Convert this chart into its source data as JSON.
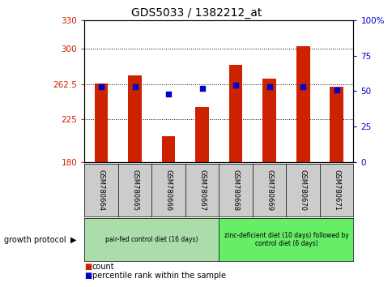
{
  "title": "GDS5033 / 1382212_at",
  "samples": [
    "GSM780664",
    "GSM780665",
    "GSM780666",
    "GSM780667",
    "GSM780668",
    "GSM780669",
    "GSM780670",
    "GSM780671"
  ],
  "counts": [
    263,
    272,
    207,
    238,
    283,
    268,
    302,
    260
  ],
  "percentiles": [
    53,
    53,
    48,
    52,
    54,
    53,
    53,
    51
  ],
  "y_min": 180,
  "y_max": 330,
  "y_ticks": [
    180,
    225,
    262.5,
    300,
    330
  ],
  "y_tick_labels": [
    "180",
    "225",
    "262.5",
    "300",
    "330"
  ],
  "right_y_ticks": [
    0,
    25,
    50,
    75,
    100
  ],
  "right_y_tick_labels": [
    "0",
    "25",
    "50",
    "75",
    "100%"
  ],
  "bar_color": "#cc2200",
  "dot_color": "#0000cc",
  "groups": [
    {
      "label": "pair-fed control diet (16 days)",
      "samples": [
        0,
        1,
        2,
        3
      ],
      "color": "#aaddaa"
    },
    {
      "label": "zinc-deficient diet (10 days) followed by\ncontrol diet (6 days)",
      "samples": [
        4,
        5,
        6,
        7
      ],
      "color": "#66ee66"
    }
  ],
  "group_label": "growth protocol",
  "legend_count_label": "count",
  "legend_percentile_label": "percentile rank within the sample",
  "axis_color_left": "#cc2200",
  "axis_color_right": "#0000cc",
  "tick_bg_color": "#cccccc"
}
